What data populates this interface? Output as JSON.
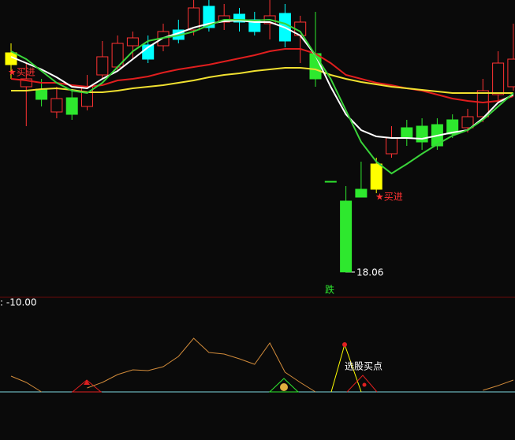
{
  "chart_data": [
    {
      "type": "candlestick",
      "ylim": [
        16.55,
        35.3
      ],
      "annotations": [
        "★买进",
        "★买进",
        "跌"
      ],
      "candles": [
        {
          "open": 31.2,
          "close": 31.95,
          "high": 32.55,
          "low": 30.3,
          "color": "#ffff00"
        },
        {
          "open": 29.8,
          "close": 30.3,
          "high": 31.3,
          "low": 27.3,
          "color": "#ff3232"
        },
        {
          "open": 29.65,
          "close": 29.0,
          "high": 30.3,
          "low": 28.55,
          "color": "#2ee82e"
        },
        {
          "open": 28.2,
          "close": 29.05,
          "high": 29.8,
          "low": 27.8,
          "color": "#ff3232"
        },
        {
          "open": 29.1,
          "close": 28.05,
          "high": 29.55,
          "low": 27.7,
          "color": "#2ee82e"
        },
        {
          "open": 28.55,
          "close": 29.8,
          "high": 30.55,
          "low": 28.3,
          "color": "#ff3232"
        },
        {
          "open": 30.55,
          "close": 31.7,
          "high": 32.7,
          "low": 30.3,
          "color": "#ff3232"
        },
        {
          "open": 31.05,
          "close": 32.55,
          "high": 33.05,
          "low": 30.8,
          "color": "#ff3232"
        },
        {
          "open": 32.4,
          "close": 32.9,
          "high": 33.3,
          "low": 31.55,
          "color": "#ff3232"
        },
        {
          "open": 32.45,
          "close": 31.55,
          "high": 33.05,
          "low": 31.3,
          "color": "#00ffff"
        },
        {
          "open": 32.4,
          "close": 33.3,
          "high": 33.8,
          "low": 32.05,
          "color": "#ff3232"
        },
        {
          "open": 33.4,
          "close": 32.8,
          "high": 34.05,
          "low": 32.55,
          "color": "#00ffff"
        },
        {
          "open": 33.4,
          "close": 34.8,
          "high": 35.3,
          "low": 33.05,
          "color": "#ff3232"
        },
        {
          "open": 34.9,
          "close": 33.55,
          "high": 35.3,
          "low": 33.3,
          "color": "#00ffff"
        },
        {
          "open": 33.9,
          "close": 34.3,
          "high": 35.05,
          "low": 33.4,
          "color": "#ff3232"
        },
        {
          "open": 34.4,
          "close": 33.9,
          "high": 34.8,
          "low": 33.3,
          "color": "#00ffff"
        },
        {
          "open": 34.05,
          "close": 33.3,
          "high": 34.55,
          "low": 33.05,
          "color": "#00ffff"
        },
        {
          "open": 33.8,
          "close": 34.3,
          "high": 35.3,
          "low": 32.8,
          "color": "#ff3232"
        },
        {
          "open": 34.45,
          "close": 32.7,
          "high": 35.05,
          "low": 32.3,
          "color": "#00ffff"
        },
        {
          "open": 33.05,
          "close": 33.9,
          "high": 34.3,
          "low": 31.3,
          "color": "#ff3232"
        },
        {
          "open": 31.9,
          "close": 30.3,
          "high": 34.55,
          "low": 29.8,
          "color": "#2ee82e"
        },
        {
          "open": 23.8,
          "close": 23.75,
          "high": 23.8,
          "low": 23.75,
          "color": "#2ee82e"
        },
        {
          "open": 22.55,
          "close": 18.06,
          "high": 23.5,
          "low": 18.06,
          "color": "#2ee82e"
        },
        {
          "open": 23.3,
          "close": 22.8,
          "high": 25.05,
          "low": 22.8,
          "color": "#2ee82e"
        },
        {
          "open": 23.3,
          "close": 24.9,
          "high": 25.3,
          "low": 23.05,
          "color": "#ffff00"
        },
        {
          "open": 25.55,
          "close": 26.55,
          "high": 27.3,
          "low": 25.3,
          "color": "#ff3232"
        },
        {
          "open": 27.2,
          "close": 26.55,
          "high": 27.7,
          "low": 26.05,
          "color": "#2ee82e"
        },
        {
          "open": 27.3,
          "close": 26.3,
          "high": 27.8,
          "low": 25.8,
          "color": "#2ee82e"
        },
        {
          "open": 27.4,
          "close": 26.05,
          "high": 27.8,
          "low": 25.8,
          "color": "#2ee82e"
        },
        {
          "open": 27.7,
          "close": 26.8,
          "high": 28.05,
          "low": 26.55,
          "color": "#2ee82e"
        },
        {
          "open": 27.2,
          "close": 27.9,
          "high": 28.4,
          "low": 26.9,
          "color": "#ff3232"
        },
        {
          "open": 27.9,
          "close": 29.55,
          "high": 30.3,
          "low": 27.55,
          "color": "#ff3232"
        },
        {
          "open": 29.3,
          "close": 31.3,
          "high": 32.05,
          "low": 28.8,
          "color": "#ff3232"
        },
        {
          "open": 29.8,
          "close": 31.55,
          "high": 33.8,
          "low": 29.55,
          "color": "#ff3232"
        }
      ],
      "series": [
        {
          "color": "#e01e1e",
          "values": [
            30.3,
            30.2,
            30.05,
            30.05,
            29.9,
            29.8,
            29.9,
            30.2,
            30.3,
            30.45,
            30.7,
            30.9,
            31.05,
            31.2,
            31.4,
            31.6,
            31.8,
            32.05,
            32.2,
            32.2,
            31.9,
            31.3,
            30.55,
            30.3,
            30.05,
            29.9,
            29.7,
            29.55,
            29.3,
            29.05,
            28.9,
            28.8,
            28.9,
            29.2
          ]
        },
        {
          "color": "#f0e030",
          "values": [
            29.55,
            29.55,
            29.65,
            29.7,
            29.6,
            29.45,
            29.45,
            29.55,
            29.7,
            29.8,
            29.9,
            30.05,
            30.2,
            30.4,
            30.55,
            30.65,
            30.8,
            30.9,
            31.0,
            31.0,
            30.9,
            30.55,
            30.3,
            30.1,
            29.95,
            29.8,
            29.7,
            29.6,
            29.5,
            29.4,
            29.4,
            29.4,
            29.4,
            29.4
          ]
        },
        {
          "color": "#ffffff",
          "values": [
            31.7,
            31.3,
            30.9,
            30.4,
            29.8,
            29.7,
            30.3,
            30.8,
            31.55,
            32.3,
            32.9,
            33.2,
            33.55,
            33.8,
            33.95,
            34.0,
            33.9,
            33.9,
            33.55,
            33.05,
            31.8,
            29.8,
            28.05,
            27.05,
            26.65,
            26.55,
            26.55,
            26.5,
            26.7,
            26.9,
            27.05,
            27.8,
            28.8,
            29.3
          ]
        },
        {
          "color": "#3ad43a",
          "values": [
            32.05,
            31.55,
            30.8,
            30.05,
            29.55,
            29.4,
            30.05,
            31.05,
            32.05,
            32.7,
            32.9,
            33.05,
            33.3,
            33.7,
            34.05,
            34.05,
            34.0,
            34.05,
            33.8,
            33.3,
            31.8,
            30.3,
            28.3,
            26.3,
            25.05,
            24.3,
            24.9,
            25.55,
            26.15,
            26.7,
            27.05,
            27.7,
            28.55,
            29.4
          ]
        }
      ]
    },
    {
      "type": "line",
      "title": ": -10.00",
      "annotation": "选股买点",
      "ylim": [
        0,
        100
      ],
      "series": [
        {
          "color": "#d08a3a",
          "values": [
            20,
            12,
            0,
            null,
            null,
            5,
            12,
            22,
            28,
            27,
            32,
            45,
            68,
            50,
            48,
            42,
            35,
            62,
            25,
            12,
            0,
            null,
            null,
            null,
            null,
            null,
            null,
            null,
            null,
            null,
            null,
            2,
            8,
            15
          ]
        }
      ]
    }
  ]
}
